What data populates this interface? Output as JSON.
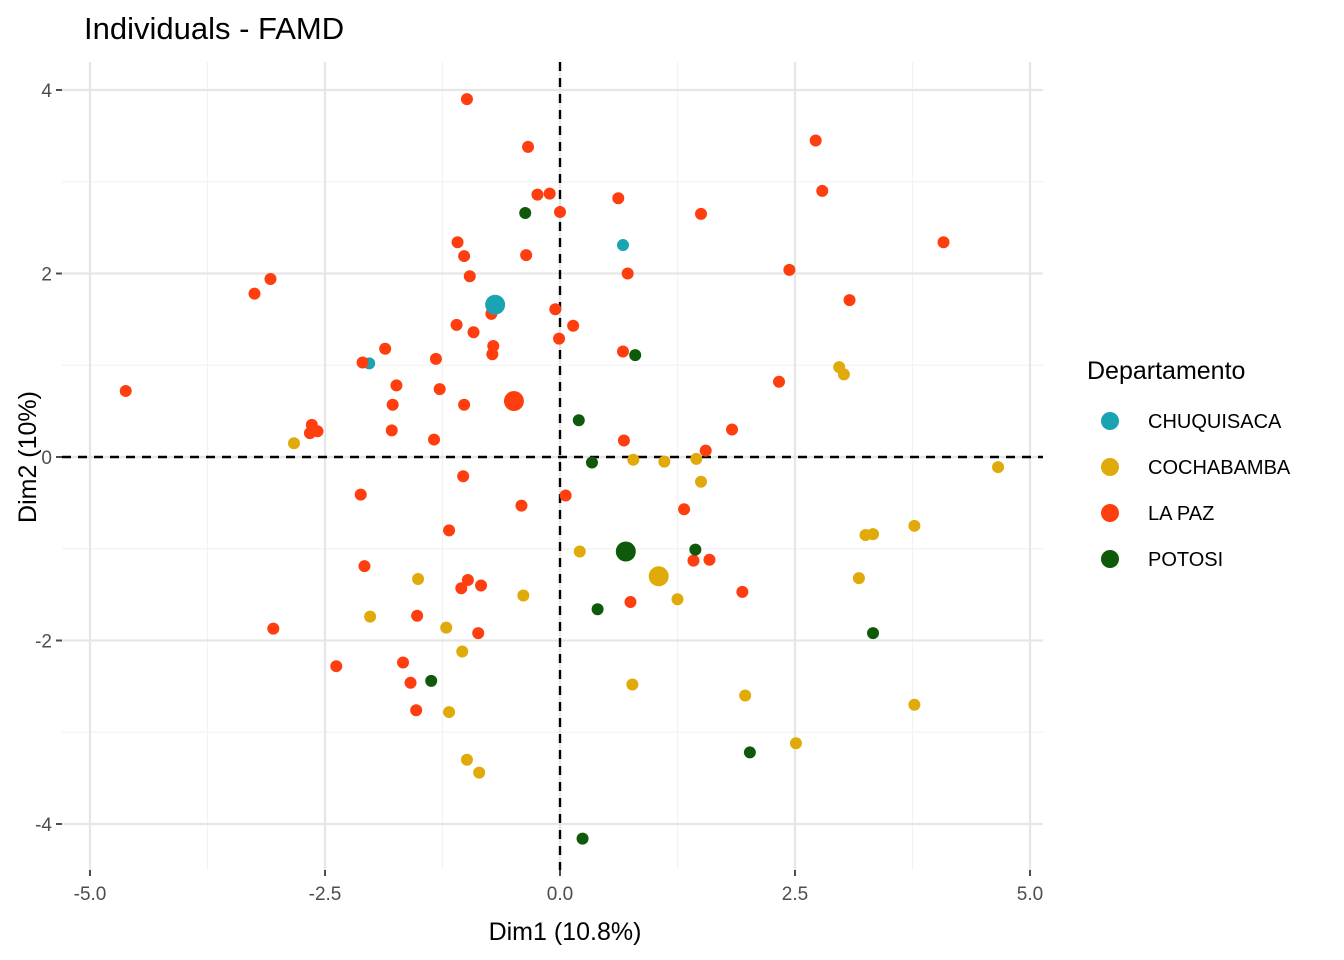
{
  "chart_data": {
    "type": "scatter",
    "title": "Individuals - FAMD",
    "xlabel": "Dim1 (10.8%)",
    "ylabel": "Dim2 (10%)",
    "xlim": [
      -5.0,
      5.0
    ],
    "ylim": [
      -4.5,
      4.3
    ],
    "xticks": [
      -5.0,
      -2.5,
      0.0,
      2.5,
      5.0
    ],
    "xtick_labels": [
      "-5.0",
      "-2.5",
      "0.0",
      "2.5",
      "5.0"
    ],
    "yticks": [
      -4,
      -2,
      0,
      2,
      4
    ],
    "ytick_labels": [
      "-4",
      "-2",
      "0",
      "2",
      "4"
    ],
    "reference_lines": {
      "x": 0,
      "y": 0,
      "style": "dashed"
    },
    "legend": {
      "title": "Departamento",
      "position": "right"
    },
    "series": [
      {
        "name": "CHUQUISACA",
        "color": "#1aa3b2",
        "points": [
          [
            0.67,
            2.31
          ],
          [
            -2.03,
            1.02
          ]
        ],
        "centroid": [
          -0.69,
          1.66
        ]
      },
      {
        "name": "COCHABAMBA",
        "color": "#e0aa0a",
        "points": [
          [
            -2.83,
            0.15
          ],
          [
            0.78,
            -0.03
          ],
          [
            1.11,
            -0.05
          ],
          [
            1.45,
            -0.02
          ],
          [
            1.5,
            -0.27
          ],
          [
            4.66,
            -0.11
          ],
          [
            2.97,
            0.98
          ],
          [
            3.02,
            0.9
          ],
          [
            0.21,
            -1.03
          ],
          [
            3.77,
            -0.75
          ],
          [
            3.25,
            -0.85
          ],
          [
            3.33,
            -0.84
          ],
          [
            3.18,
            -1.32
          ],
          [
            -1.51,
            -1.33
          ],
          [
            -0.39,
            -1.51
          ],
          [
            1.25,
            -1.55
          ],
          [
            -2.02,
            -1.74
          ],
          [
            -1.21,
            -1.86
          ],
          [
            -1.04,
            -2.12
          ],
          [
            0.77,
            -2.48
          ],
          [
            -1.18,
            -2.78
          ],
          [
            1.97,
            -2.6
          ],
          [
            3.77,
            -2.7
          ],
          [
            2.51,
            -3.12
          ],
          [
            -0.99,
            -3.3
          ],
          [
            -0.86,
            -3.44
          ]
        ],
        "centroid": [
          1.05,
          -1.3
        ]
      },
      {
        "name": "LA PAZ",
        "color": "#ff3e0f",
        "points": [
          [
            -0.99,
            3.9
          ],
          [
            -0.34,
            3.38
          ],
          [
            2.72,
            3.45
          ],
          [
            2.79,
            2.9
          ],
          [
            -0.24,
            2.86
          ],
          [
            -0.11,
            2.87
          ],
          [
            0.62,
            2.82
          ],
          [
            0.0,
            2.67
          ],
          [
            1.5,
            2.65
          ],
          [
            -1.09,
            2.34
          ],
          [
            -1.02,
            2.19
          ],
          [
            -0.36,
            2.2
          ],
          [
            4.08,
            2.34
          ],
          [
            0.72,
            2.0
          ],
          [
            2.44,
            2.04
          ],
          [
            -3.08,
            1.94
          ],
          [
            -3.25,
            1.78
          ],
          [
            -0.96,
            1.97
          ],
          [
            3.08,
            1.71
          ],
          [
            -0.05,
            1.61
          ],
          [
            -0.73,
            1.56
          ],
          [
            0.14,
            1.43
          ],
          [
            -1.1,
            1.44
          ],
          [
            -0.92,
            1.36
          ],
          [
            -0.01,
            1.29
          ],
          [
            -0.71,
            1.21
          ],
          [
            -0.72,
            1.12
          ],
          [
            0.67,
            1.15
          ],
          [
            -1.86,
            1.18
          ],
          [
            -2.1,
            1.03
          ],
          [
            -1.32,
            1.07
          ],
          [
            2.33,
            0.82
          ],
          [
            -1.74,
            0.78
          ],
          [
            -1.28,
            0.74
          ],
          [
            -4.62,
            0.72
          ],
          [
            -1.02,
            0.57
          ],
          [
            -1.78,
            0.57
          ],
          [
            -2.64,
            0.35
          ],
          [
            -2.58,
            0.28
          ],
          [
            -2.66,
            0.26
          ],
          [
            -1.79,
            0.29
          ],
          [
            1.83,
            0.3
          ],
          [
            -1.34,
            0.19
          ],
          [
            0.68,
            0.18
          ],
          [
            1.55,
            0.07
          ],
          [
            -1.03,
            -0.21
          ],
          [
            -2.12,
            -0.41
          ],
          [
            0.06,
            -0.42
          ],
          [
            -0.41,
            -0.53
          ],
          [
            1.32,
            -0.57
          ],
          [
            -1.18,
            -0.8
          ],
          [
            -2.08,
            -1.19
          ],
          [
            1.42,
            -1.13
          ],
          [
            1.59,
            -1.12
          ],
          [
            -0.98,
            -1.34
          ],
          [
            -1.05,
            -1.43
          ],
          [
            -0.84,
            -1.4
          ],
          [
            1.94,
            -1.47
          ],
          [
            0.75,
            -1.58
          ],
          [
            -1.52,
            -1.73
          ],
          [
            -3.05,
            -1.87
          ],
          [
            -0.87,
            -1.92
          ],
          [
            -2.38,
            -2.28
          ],
          [
            -1.67,
            -2.24
          ],
          [
            -1.59,
            -2.46
          ],
          [
            -1.53,
            -2.76
          ]
        ],
        "centroid": [
          -0.49,
          0.61
        ]
      },
      {
        "name": "POTOSI",
        "color": "#0f5a0a",
        "points": [
          [
            -0.37,
            2.66
          ],
          [
            0.8,
            1.11
          ],
          [
            0.2,
            0.4
          ],
          [
            0.34,
            -0.06
          ],
          [
            1.44,
            -1.01
          ],
          [
            0.4,
            -1.66
          ],
          [
            3.33,
            -1.92
          ],
          [
            -1.37,
            -2.44
          ],
          [
            2.02,
            -3.22
          ],
          [
            0.24,
            -4.16
          ]
        ],
        "centroid": [
          0.7,
          -1.03
        ]
      }
    ]
  }
}
